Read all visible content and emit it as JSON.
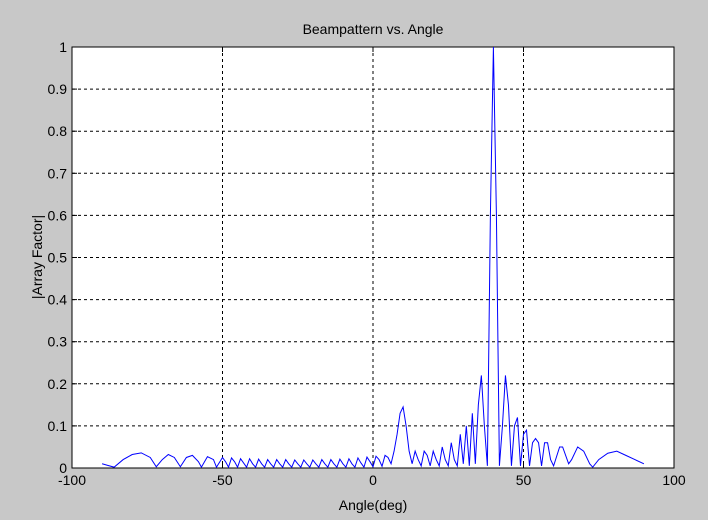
{
  "chart_data": {
    "type": "line",
    "title": "Beampattern vs. Angle",
    "x_label": "Angle(deg)",
    "y_label": "|Array Factor|",
    "xlim": [
      -100,
      100
    ],
    "ylim": [
      0,
      1
    ],
    "xticks": [
      -100,
      -50,
      0,
      50,
      100
    ],
    "yticks": [
      0,
      0.1,
      0.2,
      0.3,
      0.4,
      0.5,
      0.6,
      0.7,
      0.8,
      0.9,
      1
    ],
    "grid": true,
    "x": [
      -90,
      -88,
      -86,
      -83,
      -80,
      -77,
      -74,
      -72,
      -70,
      -68,
      -66,
      -64,
      -62,
      -60,
      -58,
      -57,
      -55,
      -53,
      -52,
      -50,
      -49,
      -48,
      -47,
      -46,
      -45,
      -44,
      -43,
      -42,
      -41,
      -40,
      -39,
      -38,
      -37,
      -36,
      -35,
      -34,
      -33,
      -32,
      -31,
      -30,
      -29,
      -28,
      -27,
      -26,
      -25,
      -24,
      -23,
      -22,
      -21,
      -20,
      -19,
      -18,
      -17,
      -16,
      -15,
      -14,
      -13,
      -12,
      -11,
      -10,
      -9,
      -8,
      -7,
      -6,
      -5,
      -4,
      -3,
      -2,
      -1,
      0,
      1,
      2,
      3,
      4,
      5,
      6,
      7,
      8,
      9,
      10,
      11,
      12,
      13,
      14,
      15,
      16,
      17,
      18,
      19,
      20,
      21,
      22,
      23,
      24,
      25,
      26,
      27,
      28,
      29,
      30,
      31,
      32,
      33,
      34,
      35,
      36,
      37,
      38,
      39,
      40,
      41,
      42,
      43,
      44,
      45,
      46,
      47,
      48,
      49,
      50,
      51,
      52,
      53,
      54,
      55,
      56,
      57,
      58,
      59,
      60,
      62,
      63,
      65,
      66,
      68,
      70,
      72,
      73,
      75,
      78,
      81,
      84,
      87,
      90
    ],
    "series": [
      {
        "color": "#0000ff",
        "values": [
          0.01,
          0.006,
          0.002,
          0.02,
          0.032,
          0.036,
          0.025,
          0.003,
          0.02,
          0.032,
          0.025,
          0.003,
          0.025,
          0.03,
          0.015,
          0.002,
          0.027,
          0.02,
          0.002,
          0.025,
          0.015,
          0.002,
          0.024,
          0.015,
          0.002,
          0.022,
          0.012,
          0.002,
          0.022,
          0.01,
          0.002,
          0.021,
          0.01,
          0.002,
          0.02,
          0.01,
          0.002,
          0.02,
          0.01,
          0.002,
          0.02,
          0.01,
          0.002,
          0.019,
          0.01,
          0.002,
          0.019,
          0.01,
          0.002,
          0.019,
          0.01,
          0.002,
          0.02,
          0.01,
          0.002,
          0.02,
          0.01,
          0.002,
          0.021,
          0.01,
          0.002,
          0.022,
          0.01,
          0.002,
          0.024,
          0.012,
          0.002,
          0.026,
          0.015,
          0.003,
          0.028,
          0.02,
          0.004,
          0.03,
          0.025,
          0.01,
          0.04,
          0.08,
          0.13,
          0.145,
          0.1,
          0.04,
          0.01,
          0.04,
          0.02,
          0.005,
          0.04,
          0.03,
          0.005,
          0.04,
          0.02,
          0.005,
          0.05,
          0.02,
          0.005,
          0.06,
          0.02,
          0.005,
          0.08,
          0.01,
          0.1,
          0.005,
          0.13,
          0.01,
          0.15,
          0.22,
          0.1,
          0.005,
          0.6,
          1,
          0.6,
          0.005,
          0.1,
          0.22,
          0.15,
          0.005,
          0.1,
          0.12,
          0.005,
          0.08,
          0.09,
          0.005,
          0.06,
          0.07,
          0.06,
          0.005,
          0.06,
          0.06,
          0.02,
          0.005,
          0.05,
          0.05,
          0.01,
          0.02,
          0.05,
          0.04,
          0.01,
          0.002,
          0.02,
          0.035,
          0.04,
          0.03,
          0.02,
          0.01
        ]
      }
    ]
  }
}
